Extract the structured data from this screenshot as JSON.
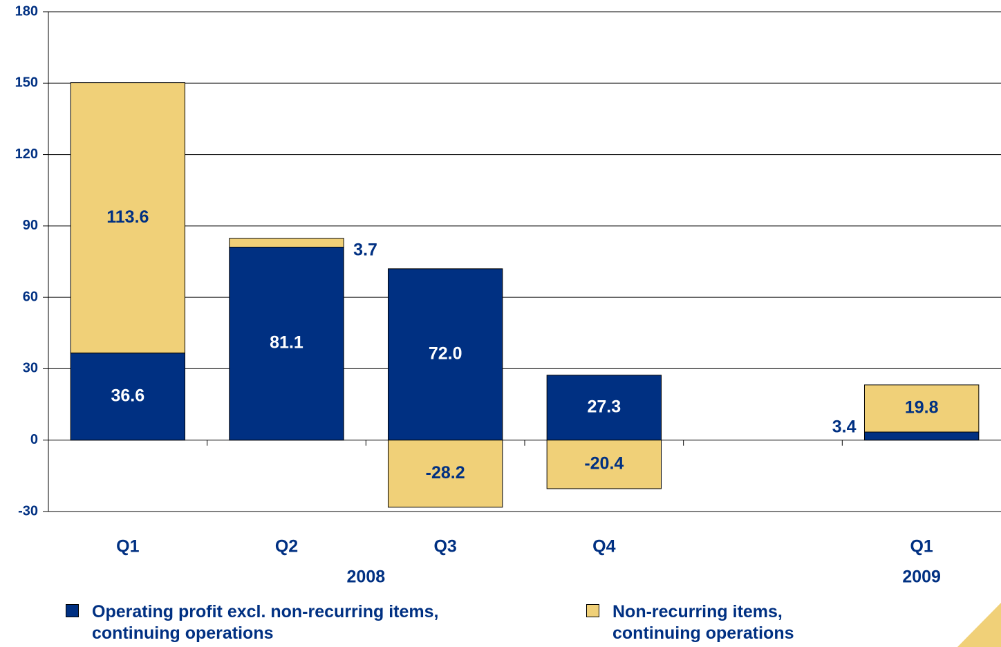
{
  "chart_data": {
    "type": "stacked_bar",
    "categories": [
      "Q1",
      "Q2",
      "Q3",
      "Q4",
      null,
      "Q1"
    ],
    "groups": [
      {
        "label": "2008",
        "span": [
          0,
          3
        ]
      },
      {
        "label": "2009",
        "span": [
          5,
          5
        ]
      }
    ],
    "series": [
      {
        "name": "Operating profit excl. non-recurring items, continuing operations",
        "color": "#003082",
        "values": [
          36.6,
          81.1,
          72.0,
          27.3,
          null,
          3.4
        ],
        "value_labels": [
          "36.6",
          "81.1",
          "72.0",
          "27.3",
          null,
          "3.4"
        ]
      },
      {
        "name": "Non-recurring items, continuing operations",
        "color": "#f0d078",
        "values": [
          113.6,
          3.7,
          -28.2,
          -20.4,
          null,
          19.8
        ]
      }
    ],
    "ylim": [
      -30,
      180
    ],
    "yticks": [
      -30,
      0,
      30,
      60,
      90,
      120,
      150,
      180
    ],
    "grid": true
  }
}
